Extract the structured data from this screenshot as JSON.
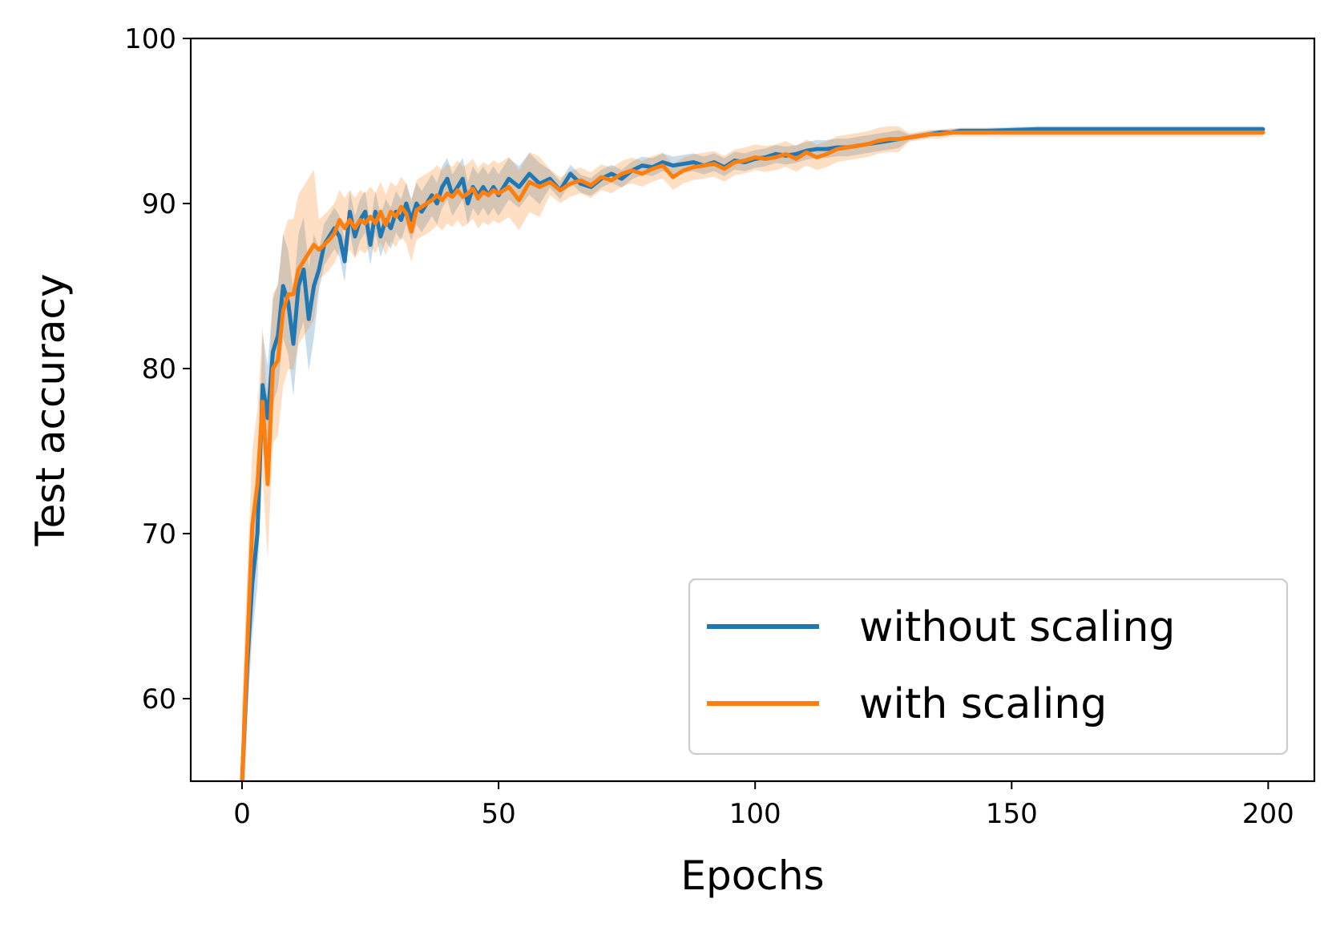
{
  "chart_data": {
    "type": "line",
    "xlabel": "Epochs",
    "ylabel": "Test accuracy",
    "xlim": [
      -10,
      209
    ],
    "ylim": [
      55,
      100
    ],
    "xticks": [
      0,
      50,
      100,
      150,
      200
    ],
    "yticks": [
      60,
      70,
      80,
      90,
      100
    ],
    "grid": false,
    "legend_position": "lower-right",
    "series": [
      {
        "name": "without scaling",
        "color": "#1f77b4",
        "points": [
          [
            0,
            55
          ],
          [
            1,
            62
          ],
          [
            2,
            67
          ],
          [
            3,
            70
          ],
          [
            4,
            79
          ],
          [
            5,
            77
          ],
          [
            6,
            81
          ],
          [
            7,
            82
          ],
          [
            8,
            85
          ],
          [
            9,
            84
          ],
          [
            10,
            81.5
          ],
          [
            11,
            85
          ],
          [
            12,
            86
          ],
          [
            13,
            83
          ],
          [
            14,
            85
          ],
          [
            15,
            86
          ],
          [
            16,
            87.5
          ],
          [
            17,
            88
          ],
          [
            18,
            88.5
          ],
          [
            19,
            88
          ],
          [
            20,
            86.5
          ],
          [
            21,
            89.5
          ],
          [
            22,
            88
          ],
          [
            23,
            89
          ],
          [
            24,
            89.5
          ],
          [
            25,
            87.5
          ],
          [
            26,
            89.5
          ],
          [
            27,
            88
          ],
          [
            28,
            89
          ],
          [
            29,
            88.5
          ],
          [
            30,
            89.5
          ],
          [
            31,
            89
          ],
          [
            32,
            90
          ],
          [
            33,
            89
          ],
          [
            34,
            90
          ],
          [
            35,
            89.5
          ],
          [
            36,
            90
          ],
          [
            37,
            90.5
          ],
          [
            38,
            90
          ],
          [
            39,
            91
          ],
          [
            40,
            91.5
          ],
          [
            41,
            90.5
          ],
          [
            42,
            91
          ],
          [
            43,
            91.5
          ],
          [
            44,
            90
          ],
          [
            45,
            91
          ],
          [
            46,
            90.5
          ],
          [
            47,
            91
          ],
          [
            48,
            90.5
          ],
          [
            49,
            91
          ],
          [
            50,
            90.5
          ],
          [
            52,
            91.5
          ],
          [
            54,
            91
          ],
          [
            56,
            91.8
          ],
          [
            58,
            91.2
          ],
          [
            60,
            91.5
          ],
          [
            62,
            90.8
          ],
          [
            64,
            91.8
          ],
          [
            66,
            91.2
          ],
          [
            68,
            91
          ],
          [
            70,
            91.5
          ],
          [
            72,
            91.8
          ],
          [
            74,
            91.5
          ],
          [
            76,
            92
          ],
          [
            78,
            92.3
          ],
          [
            80,
            92.2
          ],
          [
            82,
            92.5
          ],
          [
            84,
            92.3
          ],
          [
            86,
            92.4
          ],
          [
            88,
            92.5
          ],
          [
            90,
            92.3
          ],
          [
            92,
            92.5
          ],
          [
            94,
            92.2
          ],
          [
            96,
            92.6
          ],
          [
            98,
            92.5
          ],
          [
            100,
            92.7
          ],
          [
            102,
            92.8
          ],
          [
            104,
            93
          ],
          [
            106,
            92.9
          ],
          [
            108,
            93
          ],
          [
            110,
            93.2
          ],
          [
            112,
            93.3
          ],
          [
            114,
            93.3
          ],
          [
            116,
            93.4
          ],
          [
            118,
            93.4
          ],
          [
            120,
            93.5
          ],
          [
            122,
            93.6
          ],
          [
            124,
            93.7
          ],
          [
            126,
            93.8
          ],
          [
            128,
            93.9
          ],
          [
            130,
            94
          ],
          [
            132,
            94.1
          ],
          [
            134,
            94.2
          ],
          [
            136,
            94.3
          ],
          [
            138,
            94.3
          ],
          [
            140,
            94.4
          ],
          [
            142,
            94.4
          ],
          [
            145,
            94.4
          ],
          [
            150,
            94.45
          ],
          [
            155,
            94.5
          ],
          [
            160,
            94.5
          ],
          [
            165,
            94.5
          ],
          [
            170,
            94.5
          ],
          [
            175,
            94.5
          ],
          [
            180,
            94.5
          ],
          [
            185,
            94.5
          ],
          [
            190,
            94.5
          ],
          [
            195,
            94.5
          ],
          [
            199,
            94.5
          ]
        ]
      },
      {
        "name": "with scaling",
        "color": "#ff7f0e",
        "points": [
          [
            0,
            55
          ],
          [
            1,
            63
          ],
          [
            2,
            70.5
          ],
          [
            3,
            73
          ],
          [
            4,
            78
          ],
          [
            5,
            73
          ],
          [
            6,
            80
          ],
          [
            7,
            80.5
          ],
          [
            8,
            83.5
          ],
          [
            9,
            84.5
          ],
          [
            10,
            84.5
          ],
          [
            11,
            86
          ],
          [
            12,
            86.5
          ],
          [
            13,
            87
          ],
          [
            14,
            87.5
          ],
          [
            15,
            87.2
          ],
          [
            16,
            87.5
          ],
          [
            17,
            87.8
          ],
          [
            18,
            88.2
          ],
          [
            19,
            89
          ],
          [
            20,
            88.5
          ],
          [
            21,
            89
          ],
          [
            22,
            88.5
          ],
          [
            23,
            89
          ],
          [
            24,
            88.8
          ],
          [
            25,
            89.2
          ],
          [
            26,
            88.8
          ],
          [
            27,
            89.5
          ],
          [
            28,
            88.7
          ],
          [
            29,
            89.5
          ],
          [
            30,
            89.2
          ],
          [
            31,
            89.8
          ],
          [
            32,
            89.4
          ],
          [
            33,
            88.3
          ],
          [
            34,
            89.6
          ],
          [
            35,
            89.8
          ],
          [
            36,
            90
          ],
          [
            37,
            90.2
          ],
          [
            38,
            90.5
          ],
          [
            39,
            90.2
          ],
          [
            40,
            90.6
          ],
          [
            41,
            90.4
          ],
          [
            42,
            90.8
          ],
          [
            43,
            90.4
          ],
          [
            44,
            90.6
          ],
          [
            45,
            90.9
          ],
          [
            46,
            90.3
          ],
          [
            47,
            90.7
          ],
          [
            48,
            90.5
          ],
          [
            49,
            90.8
          ],
          [
            50,
            90.6
          ],
          [
            52,
            91
          ],
          [
            54,
            90.2
          ],
          [
            56,
            91.3
          ],
          [
            58,
            91
          ],
          [
            60,
            91.3
          ],
          [
            62,
            90.8
          ],
          [
            64,
            91.2
          ],
          [
            66,
            91.4
          ],
          [
            68,
            91.1
          ],
          [
            70,
            91.6
          ],
          [
            72,
            91.4
          ],
          [
            74,
            91.8
          ],
          [
            76,
            92
          ],
          [
            78,
            91.8
          ],
          [
            80,
            92.1
          ],
          [
            82,
            92.3
          ],
          [
            84,
            91.6
          ],
          [
            86,
            92
          ],
          [
            88,
            92.2
          ],
          [
            90,
            92.3
          ],
          [
            92,
            92.4
          ],
          [
            94,
            92.1
          ],
          [
            96,
            92.5
          ],
          [
            98,
            92.6
          ],
          [
            100,
            92.8
          ],
          [
            102,
            92.7
          ],
          [
            104,
            92.8
          ],
          [
            106,
            93
          ],
          [
            108,
            92.7
          ],
          [
            110,
            93.1
          ],
          [
            112,
            92.8
          ],
          [
            114,
            93
          ],
          [
            116,
            93.3
          ],
          [
            118,
            93.4
          ],
          [
            120,
            93.5
          ],
          [
            122,
            93.6
          ],
          [
            124,
            93.8
          ],
          [
            126,
            93.9
          ],
          [
            128,
            93.9
          ],
          [
            130,
            94
          ],
          [
            132,
            94.1
          ],
          [
            134,
            94.2
          ],
          [
            136,
            94.2
          ],
          [
            138,
            94.3
          ],
          [
            140,
            94.3
          ],
          [
            142,
            94.3
          ],
          [
            145,
            94.3
          ],
          [
            150,
            94.3
          ],
          [
            155,
            94.3
          ],
          [
            160,
            94.3
          ],
          [
            165,
            94.3
          ],
          [
            170,
            94.3
          ],
          [
            175,
            94.3
          ],
          [
            180,
            94.3
          ],
          [
            185,
            94.3
          ],
          [
            190,
            94.3
          ],
          [
            195,
            94.3
          ],
          [
            199,
            94.3
          ]
        ]
      }
    ]
  }
}
